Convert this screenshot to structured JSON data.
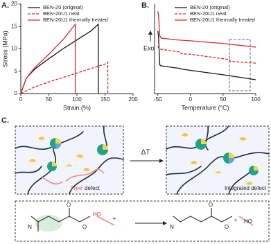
{
  "panels": {
    "a": "A.",
    "b": "B.",
    "c": "C."
  },
  "chart_data": [
    {
      "type": "line",
      "x_label": "Strain (%)",
      "y_label": "Stress (MPa)",
      "xlim": [
        0,
        200
      ],
      "xticks": [
        0,
        50,
        100,
        150,
        200
      ],
      "ylim": [
        0,
        20
      ],
      "yticks": [
        0,
        5,
        10,
        15,
        20
      ],
      "legend": "upper left",
      "series": [
        {
          "name": "BEN-20 (original)",
          "color": "#111111",
          "style": "solid",
          "x": [
            0,
            10,
            25,
            50,
            75,
            100,
            125,
            138,
            138
          ],
          "values": [
            0,
            3.5,
            5.5,
            7.8,
            10,
            12,
            14,
            15.5,
            0
          ]
        },
        {
          "name": "BEN-20U1 neat",
          "color": "#d62728",
          "style": "dashed",
          "x": [
            0,
            25,
            50,
            75,
            100,
            125,
            150,
            155,
            155
          ],
          "values": [
            0,
            1.5,
            2.6,
            3.6,
            4.6,
            5.6,
            6.6,
            7,
            0
          ]
        },
        {
          "name": "BEN-20U1 thermally treated",
          "color": "#d62728",
          "style": "solid",
          "x": [
            0,
            10,
            25,
            50,
            75,
            97,
            97
          ],
          "values": [
            0,
            3.5,
            5.8,
            8.8,
            12,
            15.5,
            0
          ]
        }
      ]
    },
    {
      "type": "line",
      "x_label": "Temperature (°C)",
      "y_label": "Exo",
      "xlim": [
        -55,
        100
      ],
      "xticks": [
        -50,
        0,
        50,
        100
      ],
      "ylim": [
        0,
        10
      ],
      "legend": "upper left",
      "series": [
        {
          "name": "BEN-20 (original)",
          "color": "#111111",
          "style": "solid",
          "x": [
            -50,
            -49,
            -47,
            -45,
            -20,
            -15,
            -14,
            0,
            50,
            100
          ],
          "values": [
            7,
            6.5,
            3.2,
            3.1,
            2.85,
            2.8,
            2.75,
            2.6,
            2.1,
            1.55
          ]
        },
        {
          "name": "BEN-20U1 neat",
          "color": "#d62728",
          "style": "dashed",
          "x": [
            -50,
            -48,
            -45,
            -20,
            -15,
            -14,
            0,
            50,
            60,
            61,
            100
          ],
          "values": [
            5.3,
            5,
            4.95,
            4.7,
            4.6,
            4.45,
            4.4,
            3.9,
            3.8,
            3.6,
            3.4
          ]
        },
        {
          "name": "BEN-20U1 thermally treated",
          "color": "#d62728",
          "style": "solid",
          "x": [
            -50,
            -49,
            -47,
            -45,
            -20,
            0,
            50,
            100
          ],
          "values": [
            9.2,
            8.8,
            6.5,
            6.2,
            6,
            5.9,
            5.6,
            5.2
          ]
        }
      ]
    }
  ],
  "diagram": {
    "arrow_label": "ΔT",
    "free_label": "Free",
    "defect_label": "defect",
    "integrated_label": "Integrated defect",
    "scheme_texts": [
      "N",
      "O",
      "O",
      "HO",
      "+",
      "N",
      "O",
      "O",
      "+",
      "HO"
    ]
  }
}
